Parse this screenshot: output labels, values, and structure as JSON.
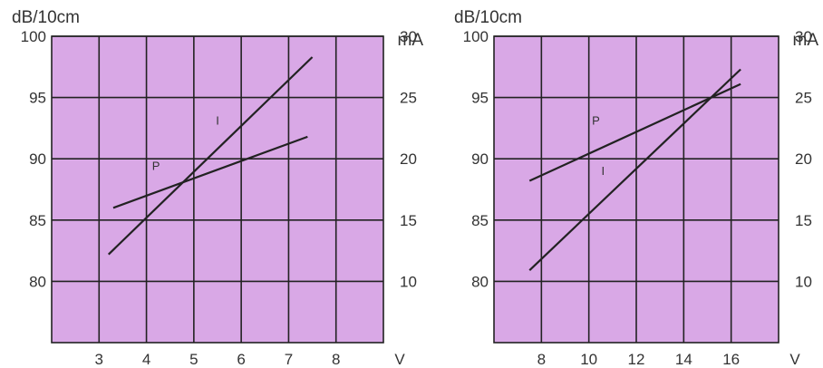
{
  "style": {
    "plot_bg": "#d9a8e6",
    "grid": "#222222",
    "line": "#222222",
    "text": "#333333"
  },
  "chart_data": [
    {
      "type": "line",
      "left_axis_label": "dB/10cm",
      "right_axis_label": "mA",
      "x_unit_label": "V",
      "x_range": [
        2,
        9
      ],
      "x_ticks": [
        3,
        4,
        5,
        6,
        7,
        8
      ],
      "y_range": [
        75,
        100
      ],
      "y_ticks": [
        100,
        95,
        90,
        85,
        80
      ],
      "right_range": [
        5,
        30
      ],
      "right_ticks": [
        30,
        25,
        20,
        15,
        10
      ],
      "series": [
        {
          "name": "P",
          "axis": "left",
          "x": [
            3.3,
            7.4
          ],
          "y": [
            86.0,
            91.8
          ],
          "label_at": [
            4.2,
            89.1
          ]
        },
        {
          "name": "I",
          "axis": "right",
          "x": [
            3.2,
            7.5
          ],
          "y": [
            12.2,
            28.3
          ],
          "label_at": [
            5.5,
            22.8
          ]
        }
      ]
    },
    {
      "type": "line",
      "left_axis_label": "dB/10cm",
      "right_axis_label": "mA",
      "x_unit_label": "V",
      "x_range": [
        6,
        18
      ],
      "x_ticks": [
        8,
        10,
        12,
        14,
        16
      ],
      "y_range": [
        75,
        100
      ],
      "y_ticks": [
        100,
        95,
        90,
        85,
        80
      ],
      "right_range": [
        5,
        30
      ],
      "right_ticks": [
        30,
        25,
        20,
        15,
        10
      ],
      "series": [
        {
          "name": "P",
          "axis": "left",
          "x": [
            7.5,
            16.4
          ],
          "y": [
            88.2,
            96.1
          ],
          "label_at": [
            10.3,
            92.8
          ]
        },
        {
          "name": "I",
          "axis": "right",
          "x": [
            7.5,
            16.4
          ],
          "y": [
            10.9,
            27.3
          ],
          "label_at": [
            10.6,
            18.7
          ]
        }
      ]
    }
  ]
}
